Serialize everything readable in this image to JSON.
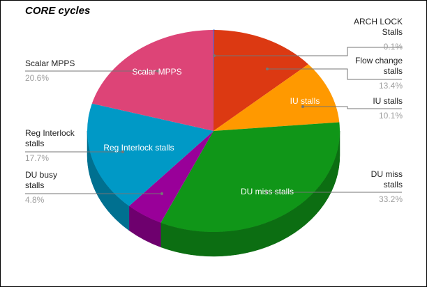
{
  "chart_data": {
    "type": "pie",
    "variant": "3d",
    "title": "CORE cycles",
    "start_angle_deg": 0,
    "direction": "clockwise",
    "slices": [
      {
        "name": "ARCH LOCK Stalls",
        "value": 0.1,
        "label": "0.1%",
        "color": "#3366cc",
        "side": "#254a94"
      },
      {
        "name": "Flow change stalls",
        "value": 13.4,
        "label": "13.4%",
        "color": "#dc3912",
        "side": "#a02a0d"
      },
      {
        "name": "IU stalls",
        "value": 10.1,
        "label": "10.1%",
        "color": "#ff9900",
        "side": "#b86e00"
      },
      {
        "name": "DU miss stalls",
        "value": 33.2,
        "label": "33.2%",
        "color": "#109618",
        "side": "#0c6e12"
      },
      {
        "name": "DU busy stalls",
        "value": 4.8,
        "label": "4.8%",
        "color": "#990099",
        "side": "#6e006e"
      },
      {
        "name": "Reg Interlock stalls",
        "value": 17.7,
        "label": "17.7%",
        "color": "#0099c6",
        "side": "#007090"
      },
      {
        "name": "Scalar MPPS",
        "value": 20.6,
        "label": "20.6%",
        "color": "#dd4477",
        "side": "#a03257"
      }
    ],
    "in_slice_labels": [
      "Scalar MPPS",
      "IU stalls",
      "Reg Interlock stalls",
      "DU miss stalls"
    ],
    "legend": "labeled callouts"
  },
  "title": "CORE cycles",
  "callouts": {
    "arch_lock": {
      "line1": "ARCH LOCK",
      "line2": "Stalls",
      "pct": "0.1%"
    },
    "flow_change": {
      "line1": "Flow change",
      "line2": "stalls",
      "pct": "13.4%"
    },
    "iu": {
      "line1": "IU stalls",
      "pct": "10.1%"
    },
    "du_miss": {
      "line1": "DU miss",
      "line2": "stalls",
      "pct": "33.2%"
    },
    "scalar": {
      "line1": "Scalar MPPS",
      "pct": "20.6%"
    },
    "reg_interlock": {
      "line1": "Reg Interlock",
      "line2": "stalls",
      "pct": "17.7%"
    },
    "du_busy": {
      "line1": "DU busy",
      "line2": "stalls",
      "pct": "4.8%"
    }
  },
  "inner_labels": {
    "scalar": "Scalar MPPS",
    "iu": "IU stalls",
    "reg_interlock": "Reg Interlock stalls",
    "du_miss": "DU miss stalls"
  }
}
